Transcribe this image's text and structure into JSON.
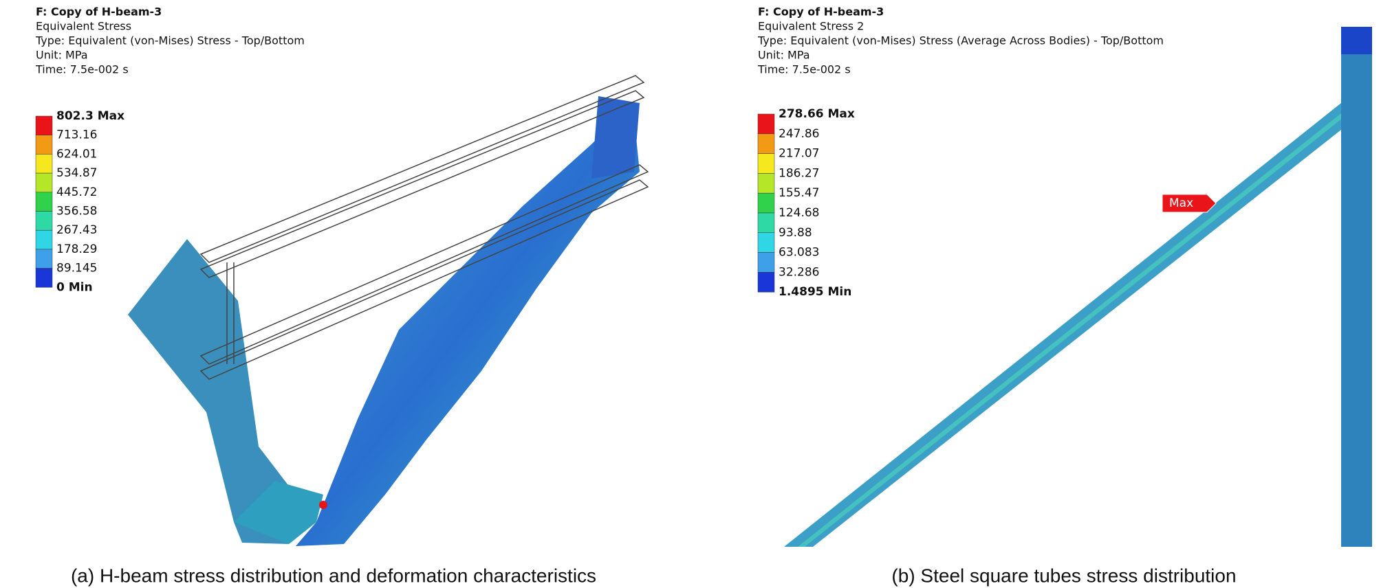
{
  "panel_a": {
    "header": {
      "title": "F: Copy of H-beam-3",
      "result": "Equivalent Stress",
      "type": "Type: Equivalent (von-Mises) Stress - Top/Bottom",
      "unit": "Unit: MPa",
      "time": "Time: 7.5e-002 s"
    },
    "legend": {
      "labels": [
        "802.3 Max",
        "713.16",
        "624.01",
        "534.87",
        "445.72",
        "356.58",
        "267.43",
        "178.29",
        "89.145",
        "0 Min"
      ],
      "colors": [
        "#e8141a",
        "#f39a14",
        "#f5e81e",
        "#b5e627",
        "#2fd24a",
        "#2fd9a6",
        "#2fd6e6",
        "#3ea0e8",
        "#1a36d8"
      ]
    },
    "caption": "(a) H-beam stress distribution and deformation characteristics"
  },
  "panel_b": {
    "header": {
      "title": "F: Copy of H-beam-3",
      "result": "Equivalent Stress 2",
      "type": "Type: Equivalent (von-Mises) Stress (Average Across Bodies) - Top/Bottom",
      "unit": "Unit: MPa",
      "time": "Time: 7.5e-002 s"
    },
    "legend": {
      "labels": [
        "278.66 Max",
        "247.86",
        "217.07",
        "186.27",
        "155.47",
        "124.68",
        "93.88",
        "63.083",
        "32.286",
        "1.4895 Min"
      ],
      "colors": [
        "#e8141a",
        "#f39a14",
        "#f5e81e",
        "#b5e627",
        "#2fd24a",
        "#2fd9a6",
        "#2fd6e6",
        "#3ea0e8",
        "#1a36d8"
      ]
    },
    "max_label": "Max",
    "caption": "(b) Steel square tubes stress distribution"
  }
}
